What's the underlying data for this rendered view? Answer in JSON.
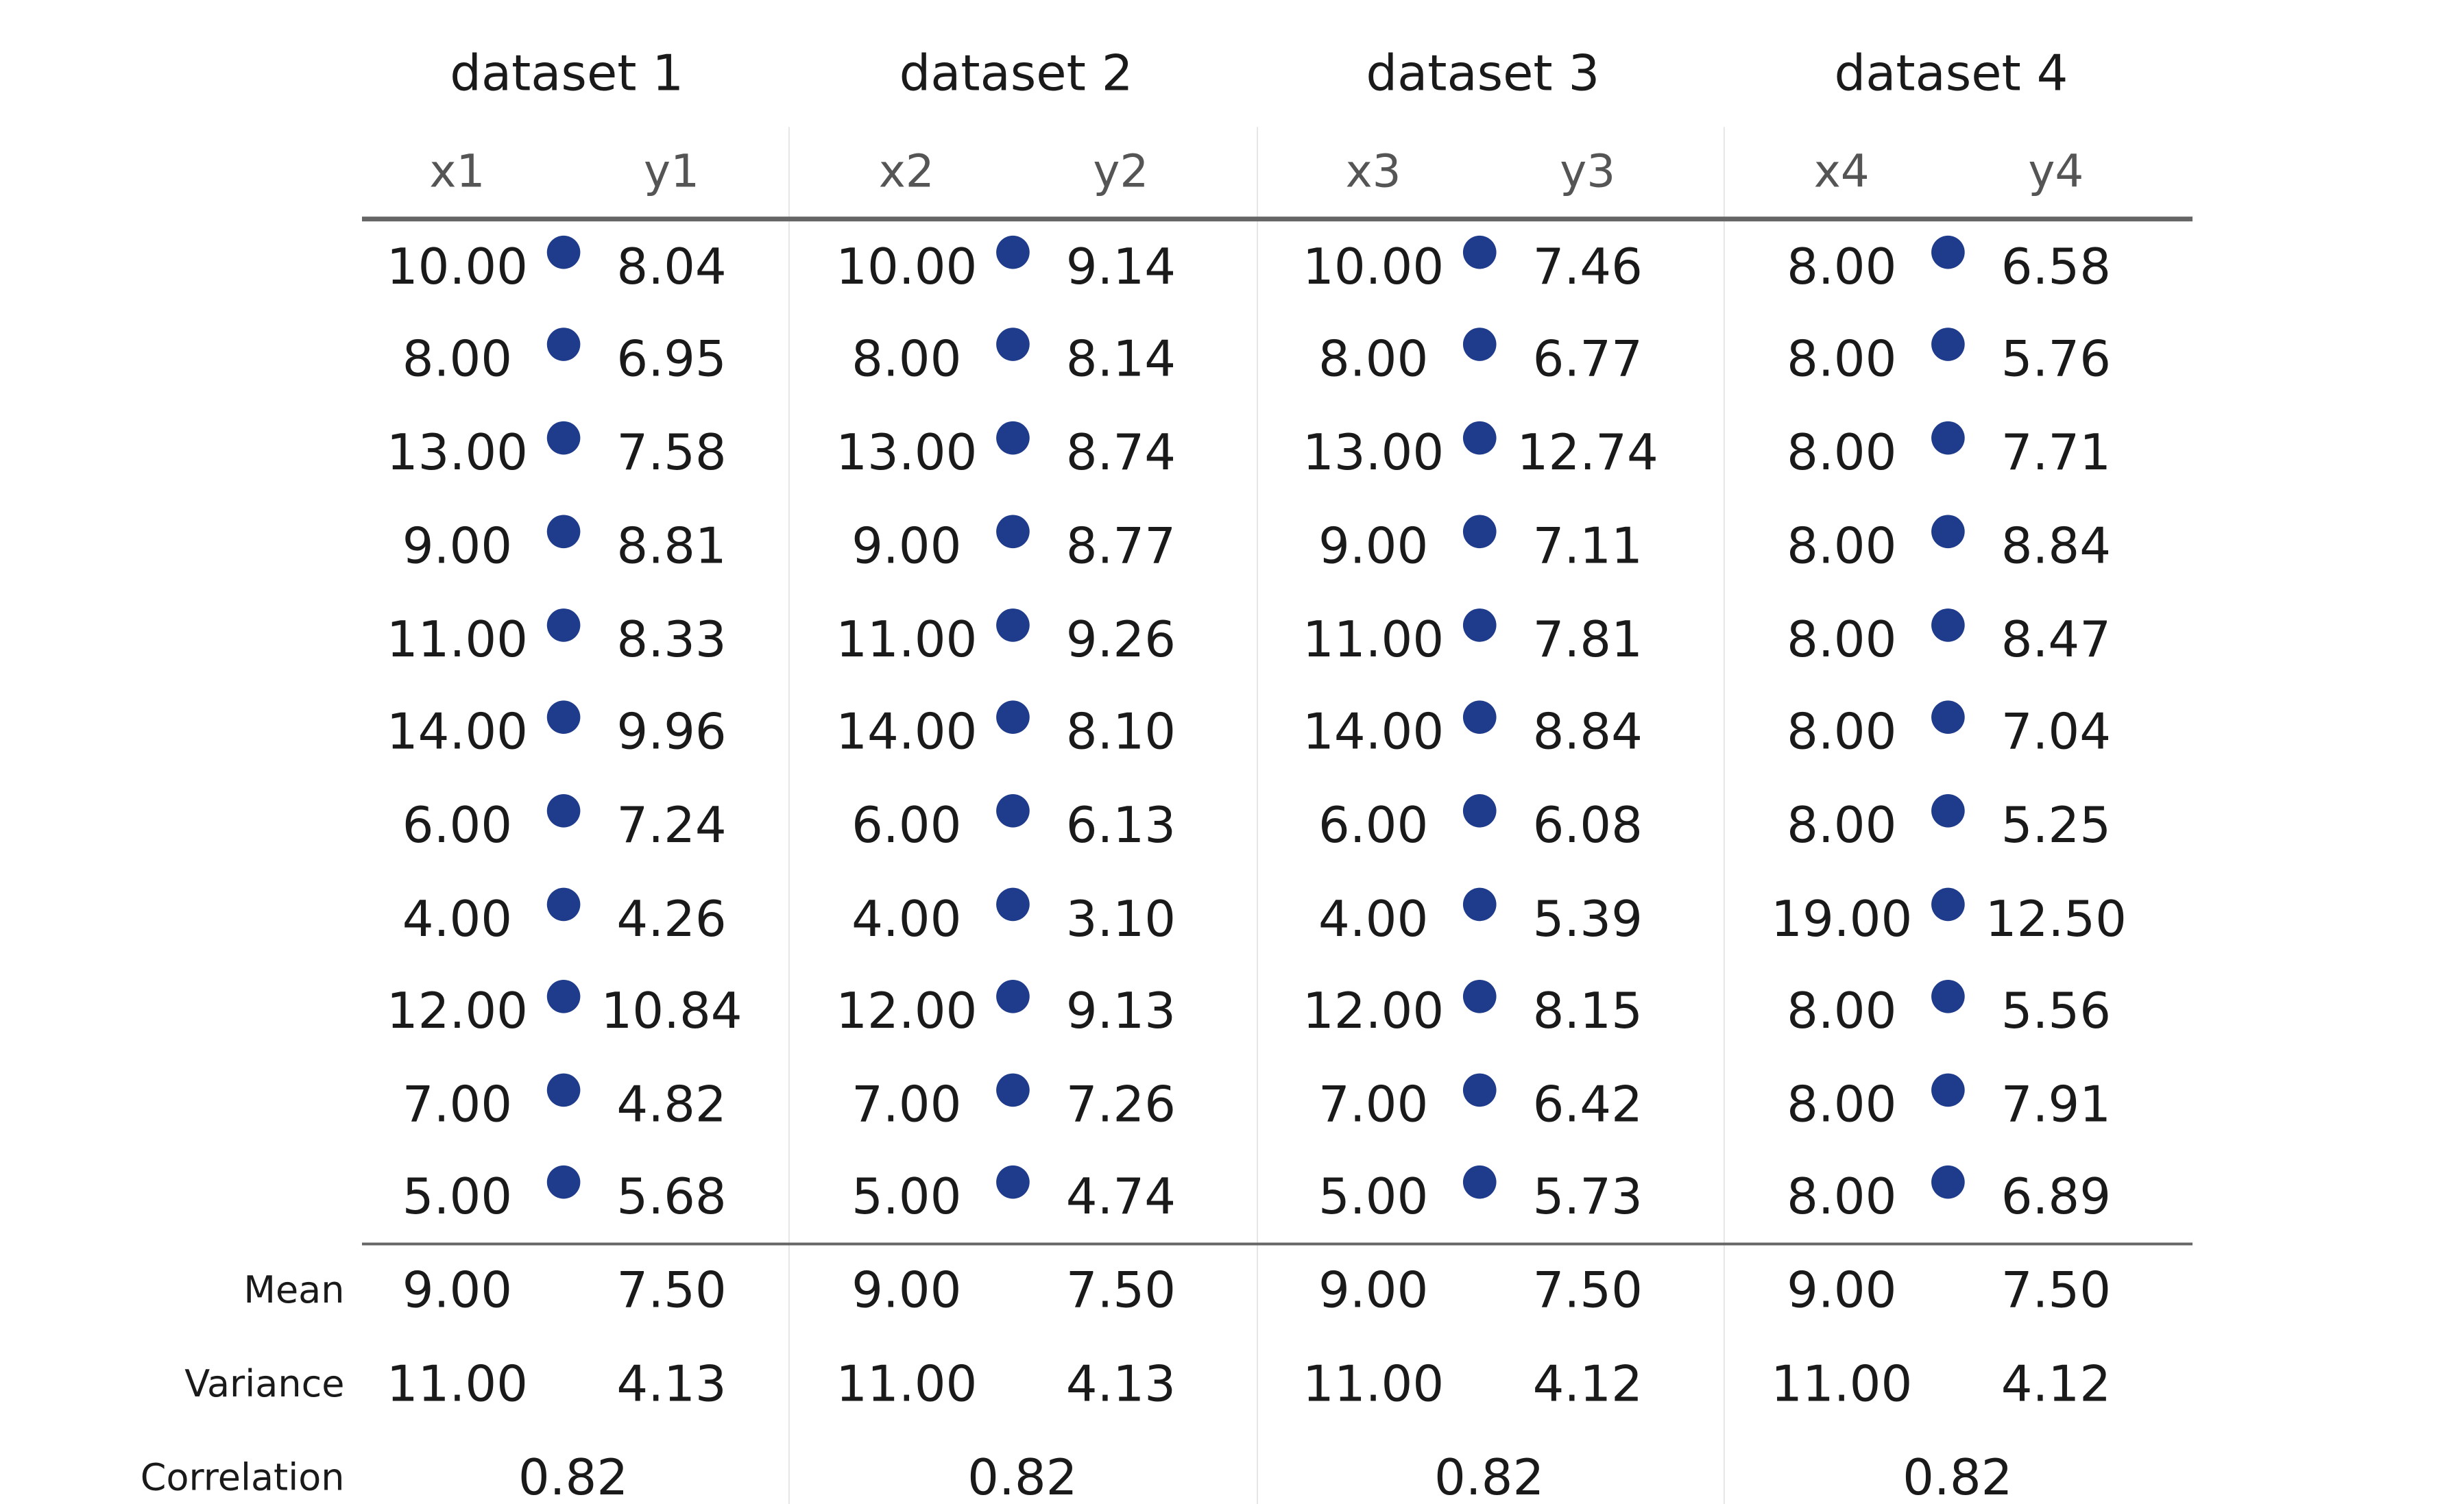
{
  "chart_data": {
    "type": "table",
    "dot_color": "#1f3b8b",
    "datasets": [
      {
        "title": "dataset 1",
        "columns": [
          "x1",
          "y1"
        ],
        "x": [
          "10.00",
          "8.00",
          "13.00",
          "9.00",
          "11.00",
          "14.00",
          "6.00",
          "4.00",
          "12.00",
          "7.00",
          "5.00"
        ],
        "y": [
          "8.04",
          "6.95",
          "7.58",
          "8.81",
          "8.33",
          "9.96",
          "7.24",
          "4.26",
          "10.84",
          "4.82",
          "5.68"
        ],
        "mean": [
          "9.00",
          "7.50"
        ],
        "variance": [
          "11.00",
          "4.13"
        ],
        "correlation": "0.82"
      },
      {
        "title": "dataset 2",
        "columns": [
          "x2",
          "y2"
        ],
        "x": [
          "10.00",
          "8.00",
          "13.00",
          "9.00",
          "11.00",
          "14.00",
          "6.00",
          "4.00",
          "12.00",
          "7.00",
          "5.00"
        ],
        "y": [
          "9.14",
          "8.14",
          "8.74",
          "8.77",
          "9.26",
          "8.10",
          "6.13",
          "3.10",
          "9.13",
          "7.26",
          "4.74"
        ],
        "mean": [
          "9.00",
          "7.50"
        ],
        "variance": [
          "11.00",
          "4.13"
        ],
        "correlation": "0.82"
      },
      {
        "title": "dataset 3",
        "columns": [
          "x3",
          "y3"
        ],
        "x": [
          "10.00",
          "8.00",
          "13.00",
          "9.00",
          "11.00",
          "14.00",
          "6.00",
          "4.00",
          "12.00",
          "7.00",
          "5.00"
        ],
        "y": [
          "7.46",
          "6.77",
          "12.74",
          "7.11",
          "7.81",
          "8.84",
          "6.08",
          "5.39",
          "8.15",
          "6.42",
          "5.73"
        ],
        "mean": [
          "9.00",
          "7.50"
        ],
        "variance": [
          "11.00",
          "4.12"
        ],
        "correlation": "0.82"
      },
      {
        "title": "dataset 4",
        "columns": [
          "x4",
          "y4"
        ],
        "x": [
          "8.00",
          "8.00",
          "8.00",
          "8.00",
          "8.00",
          "8.00",
          "8.00",
          "19.00",
          "8.00",
          "8.00",
          "8.00"
        ],
        "y": [
          "6.58",
          "5.76",
          "7.71",
          "8.84",
          "8.47",
          "7.04",
          "5.25",
          "12.50",
          "5.56",
          "7.91",
          "6.89"
        ],
        "mean": [
          "9.00",
          "7.50"
        ],
        "variance": [
          "11.00",
          "4.12"
        ],
        "correlation": "0.82"
      }
    ],
    "summary_labels": {
      "mean": "Mean",
      "variance": "Variance",
      "correlation": "Correlation"
    }
  }
}
